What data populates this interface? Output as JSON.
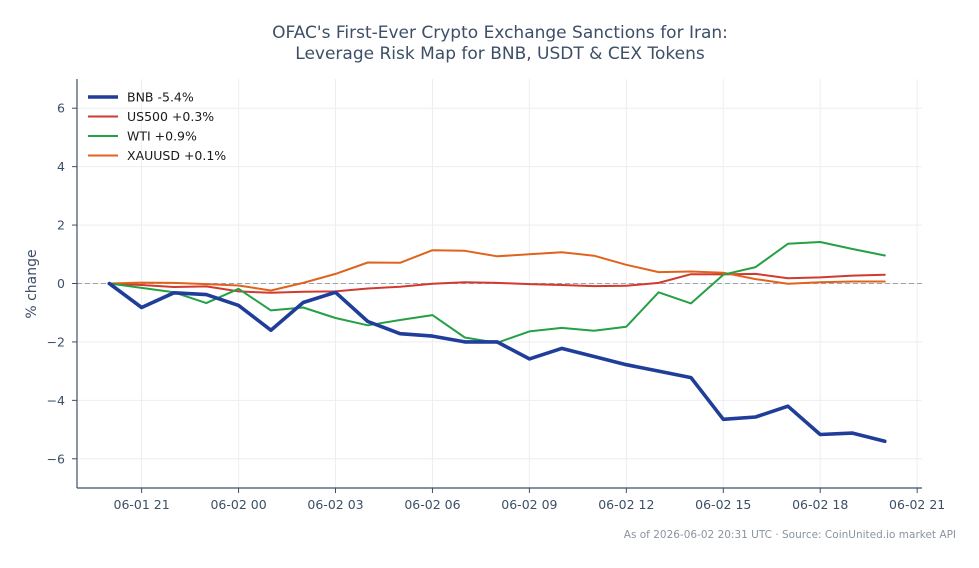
{
  "chart_data": {
    "type": "line",
    "title": "OFAC's First-Ever Crypto Exchange Sanctions for Iran:",
    "subtitle": "Leverage Risk Map for BNB, USDT & CEX Tokens",
    "xlabel": "",
    "ylabel": "% change",
    "xlim": [
      -1,
      25.15
    ],
    "ylim": [
      -7,
      7
    ],
    "grid": true,
    "legend_position": "top-left",
    "x_ticks": [
      {
        "label": "06-01 21",
        "x": 1
      },
      {
        "label": "06-02 00",
        "x": 4
      },
      {
        "label": "06-02 03",
        "x": 7
      },
      {
        "label": "06-02 06",
        "x": 10
      },
      {
        "label": "06-02 09",
        "x": 13
      },
      {
        "label": "06-02 12",
        "x": 16
      },
      {
        "label": "06-02 15",
        "x": 19
      },
      {
        "label": "06-02 18",
        "x": 22
      },
      {
        "label": "06-02 21",
        "x": 25
      }
    ],
    "y_ticks": [
      -6,
      -4,
      -2,
      0,
      2,
      4,
      6
    ],
    "reference_line": 0,
    "x": [
      0,
      1,
      2,
      3,
      4,
      5,
      6,
      7,
      8,
      9,
      10,
      11,
      12,
      13,
      14,
      15,
      16,
      17,
      18,
      19,
      20,
      21,
      22,
      23,
      24
    ],
    "series": [
      {
        "name": "BNB -5.4%",
        "color": "#1f3d99",
        "width": 3.6,
        "values": [
          0,
          -0.82,
          -0.32,
          -0.38,
          -0.75,
          -1.6,
          -0.65,
          -0.3,
          -1.3,
          -1.72,
          -1.8,
          -2.0,
          -2.0,
          -2.58,
          -2.22,
          -2.5,
          -2.78,
          -3.0,
          -3.22,
          -4.65,
          -4.57,
          -4.2,
          -5.17,
          -5.12,
          -5.4
        ]
      },
      {
        "name": "US500 +0.3%",
        "color": "#d03a2f",
        "width": 2,
        "values": [
          0,
          -0.05,
          -0.12,
          -0.1,
          -0.27,
          -0.32,
          -0.28,
          -0.27,
          -0.17,
          -0.11,
          -0.01,
          0.04,
          0.02,
          -0.02,
          -0.05,
          -0.09,
          -0.08,
          0.02,
          0.32,
          0.31,
          0.33,
          0.18,
          0.21,
          0.27,
          0.3
        ]
      },
      {
        "name": "WTI +0.9%",
        "color": "#24a045",
        "width": 2,
        "values": [
          0,
          -0.15,
          -0.3,
          -0.67,
          -0.18,
          -0.92,
          -0.82,
          -1.18,
          -1.43,
          -1.25,
          -1.08,
          -1.85,
          -2.03,
          -1.64,
          -1.52,
          -1.62,
          -1.48,
          -0.3,
          -0.68,
          0.3,
          0.56,
          1.36,
          1.42,
          1.18,
          0.96
        ]
      },
      {
        "name": "XAUUSD +0.1%",
        "color": "#e0631c",
        "width": 2,
        "values": [
          0,
          0.03,
          0.02,
          -0.02,
          -0.07,
          -0.24,
          0.02,
          0.33,
          0.72,
          0.71,
          1.14,
          1.12,
          0.93,
          1.0,
          1.07,
          0.95,
          0.64,
          0.39,
          0.41,
          0.37,
          0.15,
          -0.01,
          0.04,
          0.07,
          0.07
        ]
      }
    ]
  },
  "footer": {
    "source_note": "As of 2026-06-02 20:31 UTC · Source: CoinUnited.io market API"
  }
}
